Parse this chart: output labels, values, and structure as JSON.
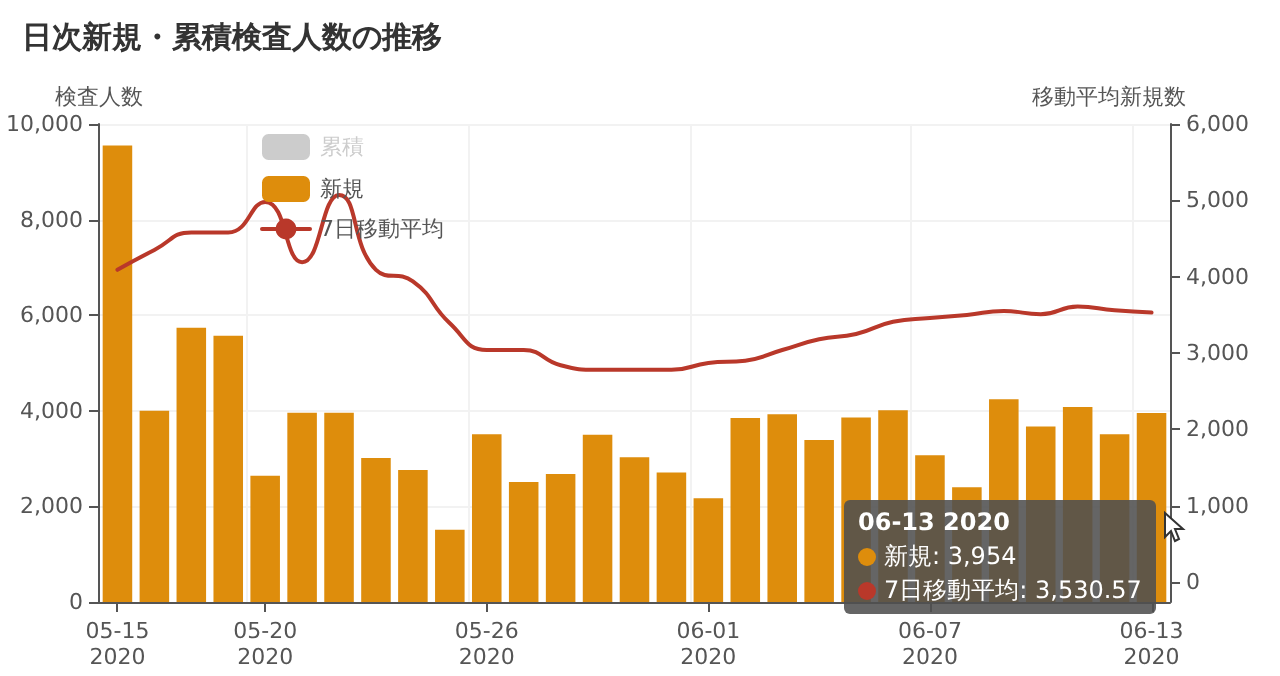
{
  "chart_data": {
    "type": "bar",
    "title": "日次新規・累積検査人数の推移",
    "ylabel": "検査人数",
    "y2label": "移動平均新規数",
    "categories": [
      "05-15\n2020",
      null,
      null,
      null,
      "05-20\n2020",
      null,
      null,
      null,
      null,
      null,
      "05-26\n2020",
      null,
      null,
      null,
      null,
      null,
      "06-01\n2020",
      null,
      null,
      null,
      null,
      null,
      "06-07\n2020",
      null,
      null,
      null,
      null,
      null,
      "06-13\n2020"
    ],
    "series": [
      {
        "name": "累積",
        "color": "#cccccc",
        "values": [
          null,
          null,
          null,
          null,
          null,
          null,
          null,
          null,
          null,
          null,
          null,
          null,
          null,
          null,
          null,
          null,
          null,
          null,
          null,
          null,
          null,
          null,
          null,
          null,
          null,
          null,
          null,
          null,
          null
        ]
      },
      {
        "name": "新規",
        "color": "#de8d0c",
        "values": [
          9550,
          4000,
          5740,
          5570,
          2640,
          3960,
          3960,
          3010,
          2760,
          1510,
          3510,
          2510,
          2680,
          3500,
          3030,
          2710,
          2170,
          3850,
          3930,
          3390,
          3860,
          4010,
          3070,
          2400,
          4240,
          3670,
          4080,
          3510,
          3954
        ]
      },
      {
        "name": "7日移動平均",
        "type": "line",
        "axis": "y2",
        "color": "#b9382a",
        "values": [
          4090,
          4350,
          4580,
          4580,
          4980,
          4190,
          5070,
          4090,
          3940,
          3390,
          3040,
          3040,
          2840,
          2780,
          2780,
          2780,
          2870,
          2900,
          3040,
          3180,
          3250,
          3410,
          3460,
          3500,
          3550,
          3510,
          3610,
          3560,
          3530.57
        ]
      }
    ],
    "ylim": [
      0,
      10000
    ],
    "yticks": [
      0,
      {
        "value": 2000,
        "label": "2,000"
      },
      {
        "value": 4000,
        "label": "4,000"
      },
      {
        "value": 6000,
        "label": "6,000"
      },
      {
        "value": 8000,
        "label": "8,000"
      },
      {
        "value": 10000,
        "label": "10,000"
      }
    ],
    "y2lim": [
      -260,
      6000
    ],
    "y2ticks": [
      0,
      {
        "value": 1000,
        "label": "1,000"
      },
      {
        "value": 2000,
        "label": "2,000"
      },
      {
        "value": 3000,
        "label": "3,000"
      },
      {
        "value": 4000,
        "label": "4,000"
      },
      {
        "value": 5000,
        "label": "5,000"
      },
      {
        "value": 6000,
        "label": "6,000"
      }
    ],
    "annotations": [
      "06-13 2020",
      "新規: 3,954",
      "7日移動平均: 3,530.57"
    ],
    "grid": true,
    "legend": "top left",
    "marker": "none",
    "line_style": "solid"
  }
}
